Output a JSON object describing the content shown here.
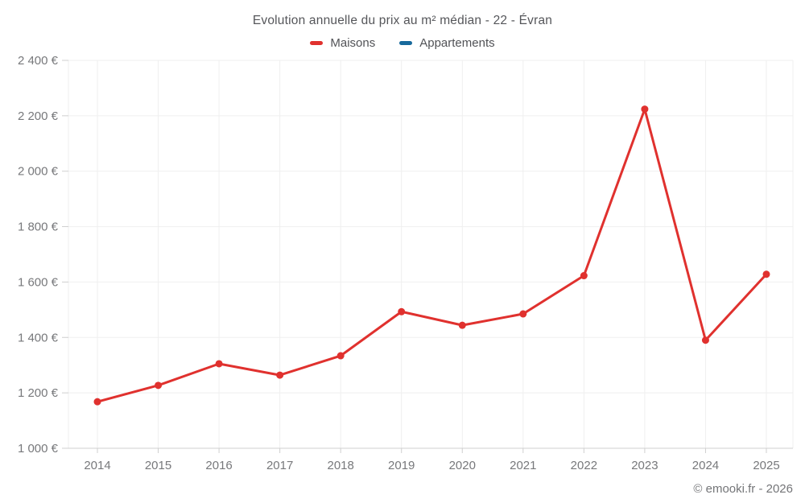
{
  "footer": {
    "credit": "© emooki.fr - 2026"
  },
  "chart_data": {
    "type": "line",
    "title": "Evolution annuelle du prix au m² médian - 22 - Évran",
    "categories": [
      "2014",
      "2015",
      "2016",
      "2017",
      "2018",
      "2019",
      "2020",
      "2021",
      "2022",
      "2023",
      "2024",
      "2025"
    ],
    "series": [
      {
        "name": "Maisons",
        "color": "#e0312e",
        "values": [
          1168,
          1227,
          1305,
          1264,
          1334,
          1493,
          1444,
          1485,
          1623,
          2224,
          1390,
          1628
        ]
      },
      {
        "name": "Appartements",
        "color": "#17699c",
        "values": []
      }
    ],
    "xlabel": "",
    "ylabel": "",
    "ylim": [
      1000,
      2400
    ],
    "ytick_step": 200,
    "ytick_suffix": " €",
    "grid": true,
    "legend_position": "top"
  }
}
